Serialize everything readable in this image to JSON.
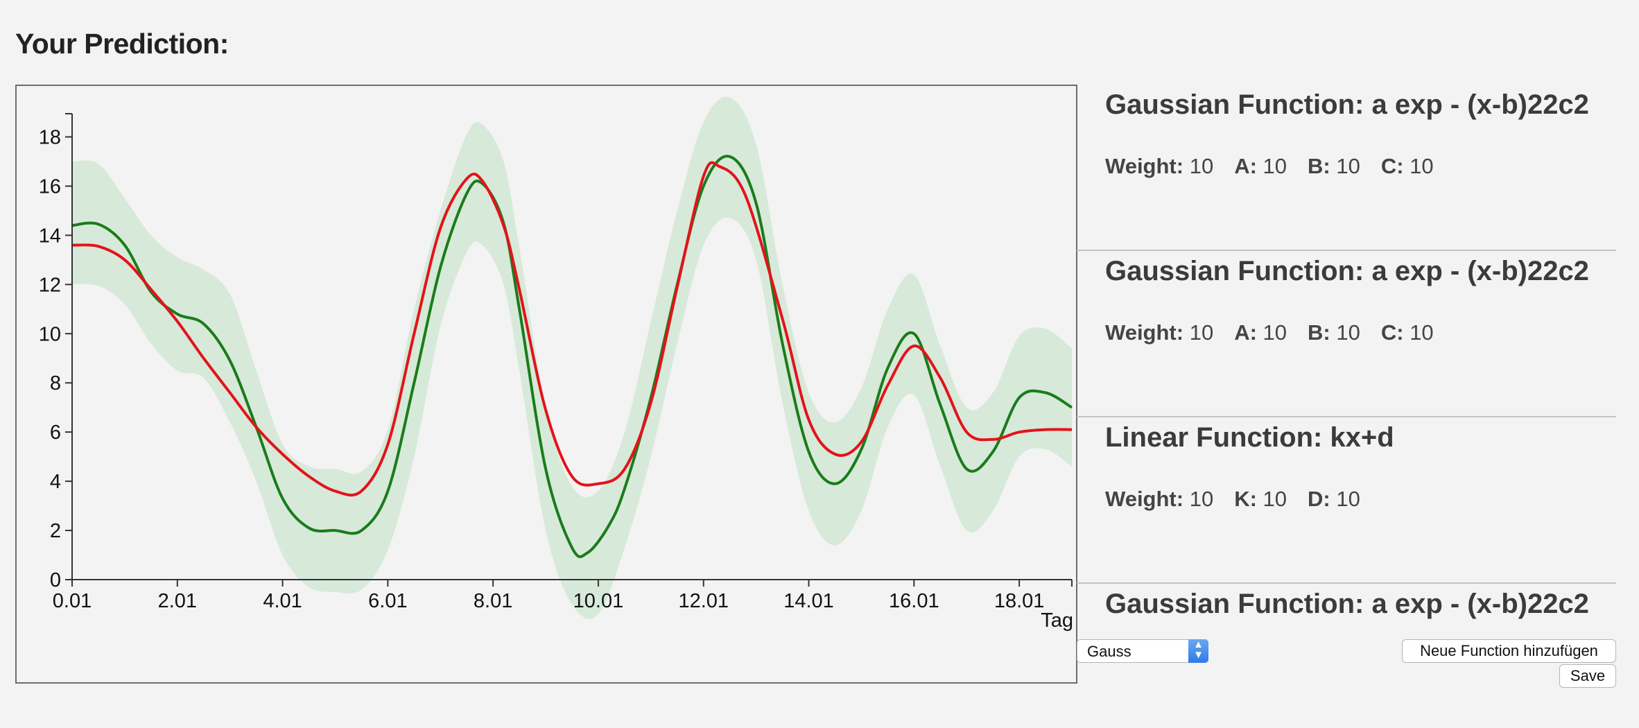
{
  "page": {
    "title": "Your Prediction:"
  },
  "chart_data": {
    "type": "line",
    "x_tick_labels": [
      "0.01",
      "2.01",
      "4.01",
      "6.01",
      "8.01",
      "10.01",
      "12.01",
      "14.01",
      "16.01",
      "18.01"
    ],
    "x_unit_label": "Tag",
    "xlim": [
      0,
      19
    ],
    "ylim": [
      0,
      19
    ],
    "y_ticks": [
      0,
      2,
      4,
      6,
      8,
      10,
      12,
      14,
      16,
      18
    ],
    "colors": {
      "band": "#d7e9d9",
      "green": "#1a7c1a",
      "red": "#e3131b"
    },
    "series": [
      {
        "line": "green",
        "points": [
          [
            0,
            14.4
          ],
          [
            0.5,
            14.45
          ],
          [
            1,
            13.6
          ],
          [
            1.5,
            11.7
          ],
          [
            2,
            10.8
          ],
          [
            2.5,
            10.4
          ],
          [
            3,
            8.9
          ],
          [
            3.5,
            6.2
          ],
          [
            4,
            3.3
          ],
          [
            4.5,
            2.1
          ],
          [
            5,
            2.0
          ],
          [
            5.5,
            2.0
          ],
          [
            6,
            3.6
          ],
          [
            6.5,
            8.0
          ],
          [
            7,
            12.7
          ],
          [
            7.5,
            15.7
          ],
          [
            7.8,
            16.1
          ],
          [
            8.2,
            14.5
          ],
          [
            8.5,
            11.0
          ],
          [
            9,
            4.5
          ],
          [
            9.5,
            1.3
          ],
          [
            9.8,
            1.1
          ],
          [
            10.2,
            2.2
          ],
          [
            10.5,
            3.7
          ],
          [
            11,
            7.4
          ],
          [
            11.5,
            12.0
          ],
          [
            12,
            16.0
          ],
          [
            12.5,
            17.2
          ],
          [
            13,
            15.3
          ],
          [
            13.5,
            9.6
          ],
          [
            14,
            5.2
          ],
          [
            14.5,
            3.9
          ],
          [
            15,
            5.3
          ],
          [
            15.5,
            8.6
          ],
          [
            16,
            10.0
          ],
          [
            16.5,
            7.1
          ],
          [
            17,
            4.5
          ],
          [
            17.5,
            5.2
          ],
          [
            18,
            7.4
          ],
          [
            18.5,
            7.6
          ],
          [
            19,
            7.0
          ]
        ]
      },
      {
        "line": "red",
        "points": [
          [
            0,
            13.6
          ],
          [
            0.5,
            13.55
          ],
          [
            1,
            13.0
          ],
          [
            1.5,
            11.8
          ],
          [
            2,
            10.5
          ],
          [
            2.5,
            9.0
          ],
          [
            3,
            7.6
          ],
          [
            3.5,
            6.2
          ],
          [
            4,
            5.1
          ],
          [
            4.5,
            4.2
          ],
          [
            5,
            3.6
          ],
          [
            5.5,
            3.6
          ],
          [
            6,
            5.5
          ],
          [
            6.5,
            10.0
          ],
          [
            7,
            14.3
          ],
          [
            7.5,
            16.3
          ],
          [
            7.8,
            16.2
          ],
          [
            8.2,
            14.4
          ],
          [
            8.5,
            11.8
          ],
          [
            9,
            6.9
          ],
          [
            9.5,
            4.2
          ],
          [
            10,
            3.9
          ],
          [
            10.5,
            4.5
          ],
          [
            11,
            7.2
          ],
          [
            11.5,
            11.9
          ],
          [
            12,
            16.4
          ],
          [
            12.3,
            16.8
          ],
          [
            12.8,
            15.6
          ],
          [
            13.5,
            10.6
          ],
          [
            14,
            6.5
          ],
          [
            14.5,
            5.1
          ],
          [
            15,
            5.6
          ],
          [
            15.5,
            7.9
          ],
          [
            16,
            9.5
          ],
          [
            16.5,
            8.2
          ],
          [
            17,
            6.0
          ],
          [
            17.5,
            5.7
          ],
          [
            18,
            6.0
          ],
          [
            18.5,
            6.1
          ],
          [
            19,
            6.1
          ]
        ]
      }
    ],
    "band": {
      "upper": [
        [
          0,
          17.0
        ],
        [
          0.5,
          16.9
        ],
        [
          1,
          15.5
        ],
        [
          1.5,
          14.0
        ],
        [
          2,
          13.1
        ],
        [
          2.5,
          12.6
        ],
        [
          3,
          11.6
        ],
        [
          3.5,
          8.5
        ],
        [
          4,
          5.5
        ],
        [
          4.5,
          4.6
        ],
        [
          5,
          4.5
        ],
        [
          5.5,
          4.4
        ],
        [
          6,
          6.1
        ],
        [
          6.5,
          11.0
        ],
        [
          7,
          15.0
        ],
        [
          7.5,
          18.1
        ],
        [
          7.8,
          18.5
        ],
        [
          8.2,
          17.0
        ],
        [
          8.5,
          13.5
        ],
        [
          9,
          7.0
        ],
        [
          9.5,
          3.8
        ],
        [
          10,
          3.6
        ],
        [
          10.5,
          6.0
        ],
        [
          11,
          10.5
        ],
        [
          11.5,
          15.0
        ],
        [
          12,
          18.6
        ],
        [
          12.5,
          19.6
        ],
        [
          13,
          17.7
        ],
        [
          13.5,
          12.0
        ],
        [
          14,
          7.6
        ],
        [
          14.5,
          6.4
        ],
        [
          15,
          7.8
        ],
        [
          15.5,
          11.0
        ],
        [
          16,
          12.4
        ],
        [
          16.5,
          9.5
        ],
        [
          17,
          7.0
        ],
        [
          17.5,
          7.6
        ],
        [
          18,
          9.9
        ],
        [
          18.5,
          10.2
        ],
        [
          19,
          9.4
        ]
      ],
      "lower": [
        [
          0,
          12.0
        ],
        [
          0.5,
          11.95
        ],
        [
          1,
          11.2
        ],
        [
          1.5,
          9.6
        ],
        [
          2,
          8.5
        ],
        [
          2.5,
          8.2
        ],
        [
          3,
          6.4
        ],
        [
          3.5,
          4.0
        ],
        [
          4,
          1.0
        ],
        [
          4.5,
          -0.3
        ],
        [
          5,
          -0.5
        ],
        [
          5.5,
          -0.4
        ],
        [
          6,
          1.2
        ],
        [
          6.5,
          5.0
        ],
        [
          7,
          10.3
        ],
        [
          7.5,
          13.3
        ],
        [
          7.8,
          13.6
        ],
        [
          8.2,
          12.0
        ],
        [
          8.5,
          8.5
        ],
        [
          9,
          2.0
        ],
        [
          9.5,
          -1.0
        ],
        [
          10,
          -1.4
        ],
        [
          10.5,
          1.3
        ],
        [
          11,
          5.0
        ],
        [
          11.5,
          9.6
        ],
        [
          12,
          13.6
        ],
        [
          12.5,
          14.7
        ],
        [
          13,
          13.0
        ],
        [
          13.5,
          7.2
        ],
        [
          14,
          2.8
        ],
        [
          14.5,
          1.4
        ],
        [
          15,
          2.8
        ],
        [
          15.5,
          6.2
        ],
        [
          16,
          7.5
        ],
        [
          16.5,
          4.6
        ],
        [
          17,
          2.0
        ],
        [
          17.5,
          2.8
        ],
        [
          18,
          5.0
        ],
        [
          18.5,
          5.3
        ],
        [
          19,
          4.6
        ]
      ]
    }
  },
  "functions": [
    {
      "title": "Gaussian Function: a exp - (x-b)22c2",
      "params": [
        {
          "name": "Weight:",
          "value": "10"
        },
        {
          "name": "A:",
          "value": "10"
        },
        {
          "name": "B:",
          "value": "10"
        },
        {
          "name": "C:",
          "value": "10"
        }
      ]
    },
    {
      "title": "Gaussian Function: a exp - (x-b)22c2",
      "params": [
        {
          "name": "Weight:",
          "value": "10"
        },
        {
          "name": "A:",
          "value": "10"
        },
        {
          "name": "B:",
          "value": "10"
        },
        {
          "name": "C:",
          "value": "10"
        }
      ]
    },
    {
      "title": "Linear Function: kx+d",
      "params": [
        {
          "name": "Weight:",
          "value": "10"
        },
        {
          "name": "K:",
          "value": "10"
        },
        {
          "name": "D:",
          "value": "10"
        }
      ]
    },
    {
      "title": "Gaussian Function: a exp - (x-b)22c2",
      "params": []
    }
  ],
  "controls": {
    "function_select": {
      "selected": "Gauss",
      "arrow_icon": "updown-arrows-icon"
    },
    "add_function_label": "Neue Function hinzufügen",
    "save_label": "Save"
  }
}
